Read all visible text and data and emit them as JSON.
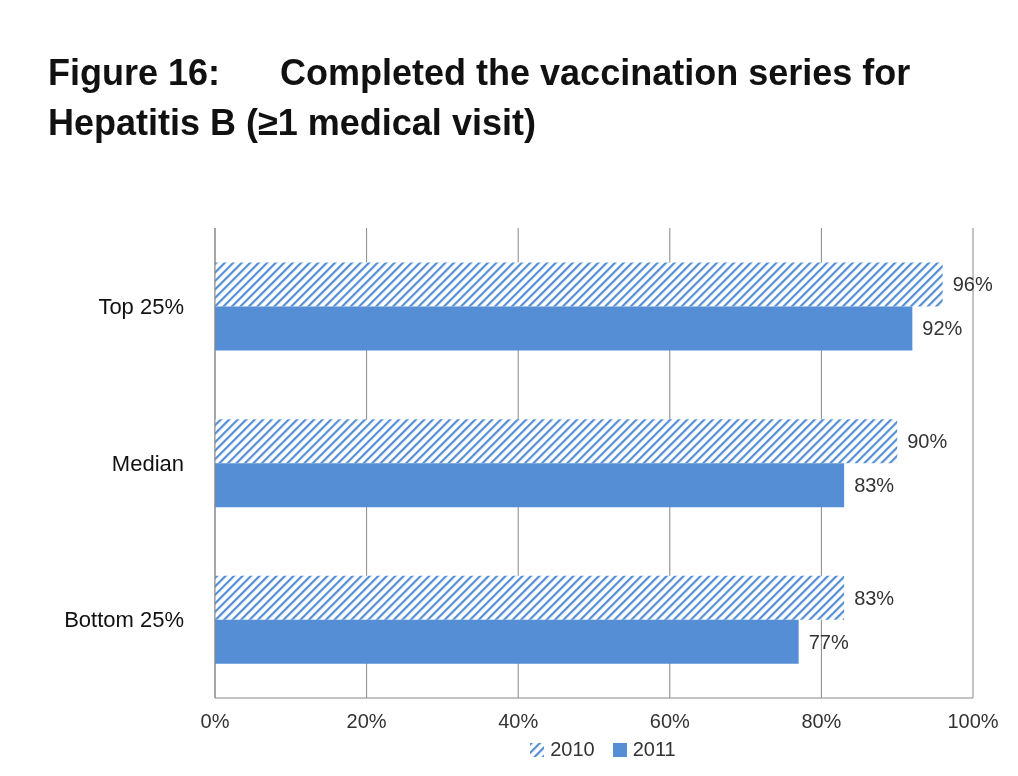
{
  "chart_data": {
    "type": "bar",
    "orientation": "horizontal",
    "title": "Figure 16:      Completed the vaccination series for Hepatitis B (≥1 medical visit)",
    "categories": [
      "Top 25%",
      "Median",
      "Bottom 25%"
    ],
    "series": [
      {
        "name": "2010",
        "color": "#558ed5",
        "values": [
          96,
          90,
          83
        ],
        "value_labels": [
          "96%",
          "90%",
          "83%"
        ]
      },
      {
        "name": "2011",
        "color": "#558ed5",
        "values": [
          92,
          83,
          77
        ],
        "value_labels": [
          "92%",
          "83%",
          "77%"
        ]
      }
    ],
    "xlim": [
      0,
      100
    ],
    "xticks": [
      {
        "value": 0,
        "label": "0%"
      },
      {
        "value": 20,
        "label": "20%"
      },
      {
        "value": 40,
        "label": "40%"
      },
      {
        "value": 60,
        "label": "60%"
      },
      {
        "value": 80,
        "label": "80%"
      },
      {
        "value": 100,
        "label": "100%"
      }
    ],
    "grid": "x",
    "legend": "bottom"
  }
}
